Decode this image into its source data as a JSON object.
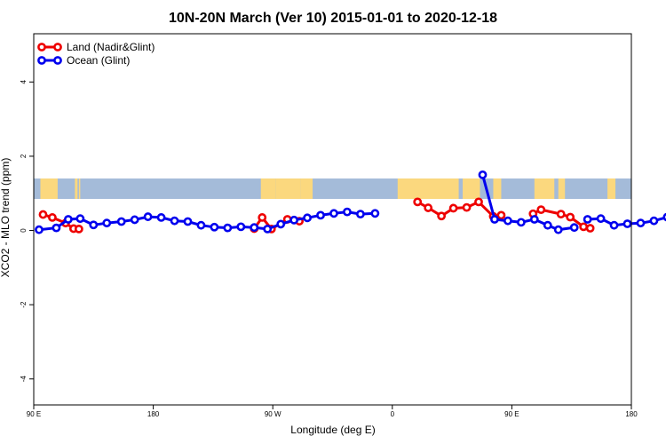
{
  "chart_data": {
    "type": "line",
    "title": "10N-20N March (Ver 10)   2015-01-01 to 2020-12-18",
    "xlabel": "Longitude (deg E)",
    "ylabel": "XCO2 - MLO trend (ppm)",
    "x_ticks": [
      {
        "value": 90,
        "label": "90 E"
      },
      {
        "value": 180,
        "label": "180"
      },
      {
        "value": 270,
        "label": "90 W"
      },
      {
        "value": 360,
        "label": "0"
      },
      {
        "value": 450,
        "label": "90 E"
      },
      {
        "value": 540,
        "label": "180"
      }
    ],
    "y_ticks": [
      -4,
      -2,
      0,
      2,
      4
    ],
    "xlim": [
      90,
      540
    ],
    "ylim": [
      -4.7,
      5.3
    ],
    "land_mask_band": {
      "y_range": [
        0.85,
        1.4
      ],
      "ocean_color": "#a4bbd9",
      "land_color": "#fbd87e",
      "land_lon_ranges": [
        [
          95,
          108
        ],
        [
          121,
          123
        ],
        [
          124,
          125
        ],
        [
          261,
          272
        ],
        [
          272,
          291
        ],
        [
          291,
          300
        ],
        [
          364,
          410
        ],
        [
          413,
          426
        ],
        [
          436,
          442
        ],
        [
          467,
          482
        ],
        [
          485,
          490
        ],
        [
          524,
          526
        ],
        [
          522,
          528
        ]
      ]
    },
    "legend": {
      "position": "top-left"
    },
    "series": [
      {
        "name": "Land (Nadir&Glint)",
        "color": "#ee0000",
        "segments": [
          [
            [
              97,
              0.43
            ],
            [
              104,
              0.35
            ],
            [
              114,
              0.2
            ],
            [
              120,
              0.05
            ],
            [
              124,
              0.04
            ]
          ],
          [
            [
              256,
              0.05
            ],
            [
              262,
              0.35
            ],
            [
              269,
              0.04
            ],
            [
              281,
              0.3
            ],
            [
              290,
              0.25
            ]
          ],
          [
            [
              379,
              0.77
            ],
            [
              387,
              0.61
            ],
            [
              397,
              0.39
            ],
            [
              406,
              0.6
            ],
            [
              416,
              0.62
            ],
            [
              425,
              0.77
            ],
            [
              436,
              0.38
            ],
            [
              442,
              0.41
            ]
          ],
          [
            [
              466,
              0.45
            ],
            [
              472,
              0.56
            ],
            [
              487,
              0.44
            ],
            [
              494,
              0.36
            ],
            [
              504,
              0.1
            ],
            [
              509,
              0.06
            ]
          ]
        ]
      },
      {
        "name": "Ocean (Glint)",
        "color": "#0000ee",
        "segments": [
          [
            [
              94,
              0.02
            ],
            [
              107,
              0.07
            ],
            [
              116,
              0.3
            ],
            [
              125,
              0.32
            ],
            [
              135,
              0.15
            ],
            [
              145,
              0.2
            ],
            [
              156,
              0.24
            ],
            [
              166,
              0.29
            ],
            [
              176,
              0.37
            ],
            [
              186,
              0.35
            ],
            [
              196,
              0.26
            ],
            [
              206,
              0.24
            ],
            [
              216,
              0.14
            ],
            [
              226,
              0.09
            ],
            [
              236,
              0.07
            ],
            [
              246,
              0.1
            ],
            [
              256,
              0.08
            ],
            [
              266,
              0.04
            ],
            [
              276,
              0.17
            ],
            [
              286,
              0.28
            ],
            [
              296,
              0.34
            ],
            [
              306,
              0.41
            ],
            [
              316,
              0.46
            ],
            [
              326,
              0.5
            ],
            [
              336,
              0.44
            ],
            [
              347,
              0.46
            ]
          ],
          [
            [
              428,
              1.5
            ],
            [
              437,
              0.3
            ],
            [
              447,
              0.26
            ],
            [
              457,
              0.22
            ],
            [
              467,
              0.3
            ],
            [
              477,
              0.14
            ],
            [
              485,
              0.02
            ],
            [
              497,
              0.08
            ]
          ],
          [
            [
              507,
              0.3
            ],
            [
              517,
              0.32
            ],
            [
              527,
              0.14
            ],
            [
              537,
              0.18
            ],
            [
              547,
              0.2
            ],
            [
              557,
              0.26
            ],
            [
              567,
              0.36
            ]
          ]
        ]
      }
    ]
  }
}
